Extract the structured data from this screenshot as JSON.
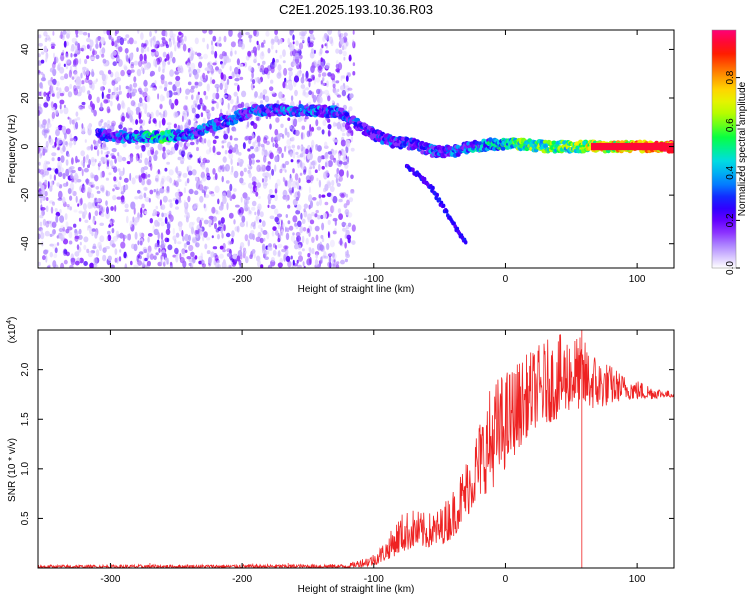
{
  "title": "C2E1.2025.193.10.36.R03",
  "colors": {
    "snr_line": "#ee2222",
    "colormap": [
      "#ffffff",
      "#b08cff",
      "#7700ff",
      "#1a00ff",
      "#0090ff",
      "#00e0e0",
      "#00ff44",
      "#aaff00",
      "#ffee00",
      "#ff8800",
      "#ff1100",
      "#ff0077"
    ]
  },
  "chart_data": [
    {
      "type": "heatmap",
      "xlabel": "Height of straight line (km)",
      "ylabel": "Frequency (Hz)",
      "xlim": [
        -355,
        128
      ],
      "ylim": [
        -50,
        48
      ],
      "x_ticks": [
        -300,
        -200,
        -100,
        0,
        100
      ],
      "y_ticks": [
        40,
        20,
        0,
        -20,
        -40
      ],
      "colorbar": {
        "label": "Normalized spectral amplitude",
        "range": [
          0.0,
          1.0
        ],
        "ticks": [
          "0.0",
          "0.2",
          "0.4",
          "0.6",
          "0.8"
        ],
        "tick_values": [
          0.0,
          0.2,
          0.4,
          0.6,
          0.8
        ]
      },
      "ridge": {
        "x": [
          -310,
          -290,
          -260,
          -240,
          -190,
          -170,
          -150,
          -125,
          -115,
          -100,
          -85,
          -70,
          -55,
          -40,
          -25,
          -10,
          10,
          30,
          50,
          65,
          128
        ],
        "y": [
          5,
          4,
          4,
          5,
          15,
          15,
          15,
          14,
          10,
          5,
          2,
          1,
          -2,
          -2,
          0,
          1,
          1,
          0,
          0,
          0,
          0
        ],
        "amplitude": [
          0.35,
          0.45,
          0.6,
          0.45,
          0.4,
          0.45,
          0.45,
          0.4,
          0.4,
          0.35,
          0.4,
          0.4,
          0.45,
          0.45,
          0.5,
          0.55,
          0.7,
          0.7,
          0.7,
          0.8,
          1.0
        ]
      },
      "branch": {
        "x": [
          -75,
          -65,
          -55,
          -45,
          -35,
          -30
        ],
        "y": [
          -8,
          -12,
          -18,
          -27,
          -36,
          -40
        ]
      },
      "noise_region": {
        "x": [
          -355,
          -115
        ],
        "y": [
          -50,
          48
        ]
      }
    },
    {
      "type": "line",
      "xlabel": "Height of straight line (km)",
      "ylabel": "SNR (10 * v/v)",
      "y_multiplier": "(x10",
      "y_multiplier_exp": "4",
      "y_multiplier_close": ")",
      "xlim": [
        -355,
        128
      ],
      "ylim": [
        0,
        2.4
      ],
      "x_ticks": [
        -300,
        -200,
        -100,
        0,
        100
      ],
      "y_ticks": [
        0.5,
        1.0,
        1.5,
        2.0
      ],
      "y_tick_labels": [
        "0.5",
        "1.0",
        "1.5",
        "2.0"
      ],
      "series": [
        {
          "envelope_x": [
            -355,
            -120,
            -100,
            -90,
            -80,
            -70,
            -60,
            -50,
            -40,
            -30,
            -20,
            -10,
            0,
            10,
            20,
            30,
            40,
            50,
            60,
            70,
            80,
            90,
            100,
            110,
            120,
            128
          ],
          "envelope_lo": [
            0.0,
            0.0,
            0.02,
            0.08,
            0.15,
            0.2,
            0.2,
            0.22,
            0.3,
            0.5,
            0.7,
            0.8,
            1.0,
            1.2,
            1.4,
            1.45,
            1.5,
            1.6,
            1.6,
            1.6,
            1.65,
            1.7,
            1.7,
            1.7,
            1.72,
            1.72
          ],
          "envelope_hi": [
            0.03,
            0.04,
            0.15,
            0.3,
            0.55,
            0.6,
            0.55,
            0.6,
            0.8,
            1.1,
            1.5,
            1.9,
            2.0,
            2.1,
            2.2,
            2.3,
            2.35,
            2.4,
            2.3,
            2.15,
            2.05,
            1.95,
            1.9,
            1.85,
            1.8,
            1.78
          ],
          "spikes": [
            {
              "x": -270,
              "y": 0.05
            },
            {
              "x": -165,
              "y": 0.05
            },
            {
              "x": 58,
              "y": 2.4
            }
          ]
        }
      ]
    }
  ]
}
